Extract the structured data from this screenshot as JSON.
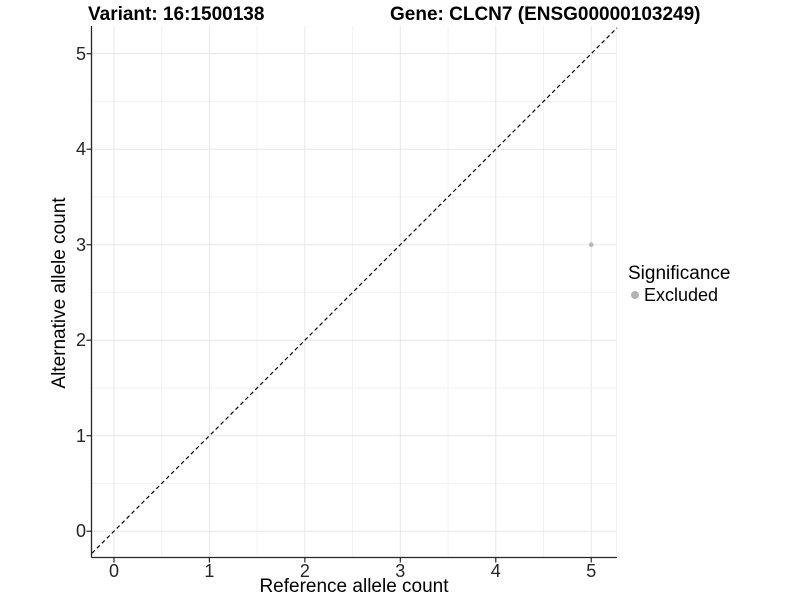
{
  "header": {
    "left_title": "Variant: 16:1500138",
    "right_title": "Gene: CLCN7 (ENSG00000103249)"
  },
  "chart_data": {
    "type": "scatter",
    "xlabel": "Reference allele count",
    "ylabel": "Alternative allele count",
    "xlim": [
      -0.23,
      5.27
    ],
    "ylim": [
      -0.27,
      5.29
    ],
    "xticks": [
      0,
      1,
      2,
      3,
      4,
      5
    ],
    "yticks": [
      0,
      1,
      2,
      3,
      4,
      5
    ],
    "minor_xticks": [
      0.5,
      1.5,
      2.5,
      3.5,
      4.5
    ],
    "minor_yticks": [
      0.5,
      1.5,
      2.5,
      3.5,
      4.5
    ],
    "grid": "major+minor",
    "identity_line": {
      "slope": 1,
      "intercept": 0,
      "style": "dashed",
      "color": "#000000"
    },
    "series": [
      {
        "name": "Excluded",
        "color": "#b7b7b7",
        "points": [
          {
            "x": 5,
            "y": 3
          }
        ]
      }
    ]
  },
  "legend": {
    "title": "Significance",
    "position": "right",
    "items": [
      {
        "label": "Excluded",
        "color": "#b2b2b2"
      }
    ]
  },
  "colors": {
    "background": "#ffffff",
    "grid_major": "#e7e7e7",
    "grid_minor": "#f2f2f2",
    "axis": "#262626",
    "tick_text": "#262626",
    "title_text": "#000000",
    "point": "#b7b7b7"
  }
}
